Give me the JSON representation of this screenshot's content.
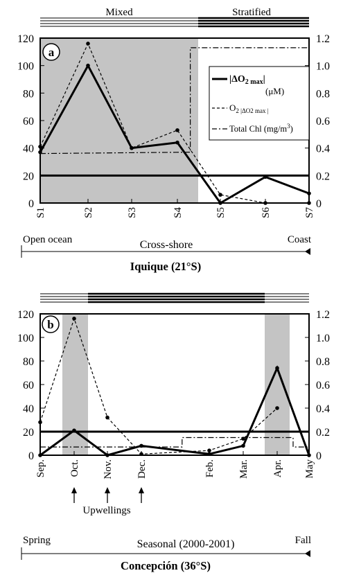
{
  "chart_data": [
    {
      "type": "line",
      "panel_label": "a",
      "regime_labels": [
        "Mixed",
        "Stratified"
      ],
      "categories": [
        "S1",
        "S2",
        "S3",
        "S4",
        "S5",
        "S6",
        "S7"
      ],
      "y_left_ticks": [
        "0",
        "20",
        "40",
        "60",
        "80",
        "100",
        "120"
      ],
      "y_right_ticks": [
        "0",
        "0.2",
        "0.4",
        "0.6",
        "0.8",
        "1.0",
        "1.2"
      ],
      "ylim_left": [
        0,
        120
      ],
      "ylim_right": [
        0,
        1.2
      ],
      "reference_line_left": 20,
      "shaded_x_range": [
        "S1",
        "S4"
      ],
      "legend": {
        "dO2": "|ΔO",
        "dO2_sub": "2 max",
        "dO2_end": "|",
        "dO2_unit": "(μM)",
        "depth_main": "O",
        "depth_sub": "2 |ΔO2 max |",
        "chl": "Total Chl (mg/m",
        "chl_sup": "3",
        "chl_end": ")"
      },
      "series": [
        {
          "name": "|ΔO2 max| (μM)",
          "style": "solid-bold",
          "axis": "left",
          "values": [
            37,
            100,
            40,
            44,
            0,
            19,
            7
          ]
        },
        {
          "name": "O2 |ΔO2 max|",
          "style": "dashed",
          "axis": "left",
          "values": [
            41,
            116,
            40,
            53,
            6,
            0,
            0
          ]
        },
        {
          "name": "Total Chl (mg/m3)",
          "style": "dashdot",
          "axis": "right",
          "points": [
            [
              0,
              0.36
            ],
            [
              3.3,
              0.37
            ],
            [
              3.3,
              1.13
            ],
            [
              6.0,
              1.13
            ]
          ]
        }
      ],
      "annotations": {
        "left": "Open ocean",
        "center": "Cross-shore",
        "right": "Coast",
        "title": "Iquique (21°S)"
      }
    },
    {
      "type": "line",
      "panel_label": "b",
      "categories": [
        "Sep.",
        "Oct.",
        "Nov.",
        "Dec.",
        "Feb.",
        "Mar.",
        "Apr.",
        "May"
      ],
      "y_left_ticks": [
        "0",
        "20",
        "40",
        "60",
        "80",
        "100",
        "120"
      ],
      "y_right_ticks": [
        "0",
        "0.2",
        "0.4",
        "0.6",
        "0.8",
        "1.0",
        "1.2"
      ],
      "ylim_left": [
        0,
        120
      ],
      "ylim_right": [
        0,
        1.2
      ],
      "reference_line_left": 20,
      "upwellings": [
        "Oct.",
        "Nov.",
        "Dec."
      ],
      "upwellings_label": "Upwellings",
      "series": [
        {
          "name": "|ΔO2 max| (μM)",
          "style": "solid-bold",
          "axis": "left",
          "values": [
            0,
            21,
            0,
            8,
            1,
            8,
            74,
            0
          ]
        },
        {
          "name": "O2 |ΔO2 max|",
          "style": "dashed",
          "axis": "left",
          "values": [
            28,
            116,
            32,
            1,
            4,
            14,
            40,
            null
          ]
        },
        {
          "name": "Total Chl (mg/m3)",
          "style": "dashdot",
          "axis": "right",
          "points": [
            [
              0,
              0.07
            ],
            [
              3.6,
              0.07
            ],
            [
              3.6,
              0.15
            ],
            [
              6.5,
              0.15
            ],
            [
              6.5,
              0.07
            ],
            [
              8.8,
              0.07
            ]
          ]
        }
      ],
      "annotations": {
        "left": "Spring",
        "center": "Seasonal (2000-2001)",
        "right": "Fall",
        "title": "Concepción (36°S)"
      }
    }
  ]
}
